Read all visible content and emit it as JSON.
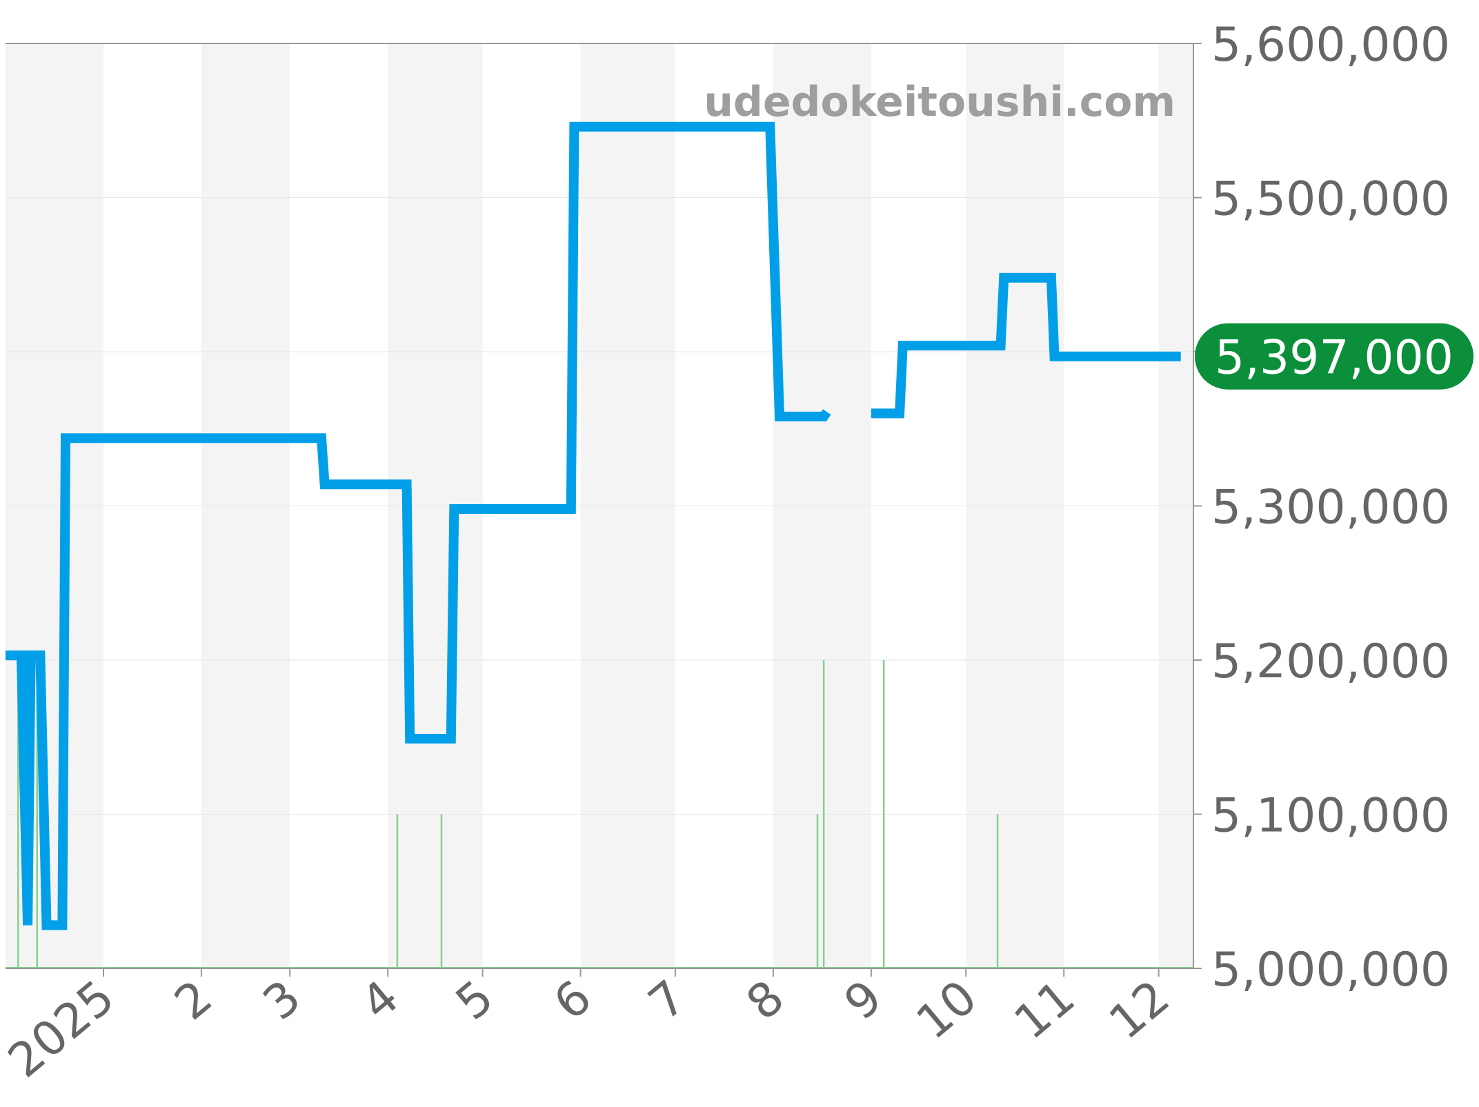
{
  "watermark": "udedokeitoushi.com",
  "colors": {
    "line": "#009fe8",
    "volume": "#86d08e",
    "band": "#f4f4f4",
    "grid": "#e6e6e6",
    "axis": "#999999",
    "tick_text": "#666666",
    "badge": "#0b8f3a",
    "watermark": "#9e9e9e"
  },
  "chart_data": {
    "type": "line",
    "title": "",
    "xlabel": "",
    "ylabel": "",
    "x_range": [
      "2024-12-01",
      "2025-12-12"
    ],
    "ylim": [
      5000000,
      5600000
    ],
    "y_ticks": [
      5000000,
      5100000,
      5200000,
      5300000,
      5400000,
      5500000,
      5600000
    ],
    "y_tick_labels": [
      "5,000,000",
      "5,100,000",
      "5,200,000",
      "5,300,000",
      "5,400,000",
      "5,500,000",
      "5,600,000"
    ],
    "x_ticks": [
      {
        "date": "2025-01-01",
        "label": "2025"
      },
      {
        "date": "2025-02-01",
        "label": "2"
      },
      {
        "date": "2025-03-01",
        "label": "3"
      },
      {
        "date": "2025-04-01",
        "label": "4"
      },
      {
        "date": "2025-05-01",
        "label": "5"
      },
      {
        "date": "2025-06-01",
        "label": "6"
      },
      {
        "date": "2025-07-01",
        "label": "7"
      },
      {
        "date": "2025-08-01",
        "label": "8"
      },
      {
        "date": "2025-09-01",
        "label": "9"
      },
      {
        "date": "2025-10-01",
        "label": "10"
      },
      {
        "date": "2025-11-01",
        "label": "11"
      },
      {
        "date": "2025-12-01",
        "label": "12"
      }
    ],
    "grid": true,
    "last_value_label": "5,397,000",
    "last_value": 5397000,
    "series": [
      {
        "segments": [
          [
            {
              "x": "2024-12-01",
              "y": 5203000
            },
            {
              "x": "2024-12-06",
              "y": 5203000
            },
            {
              "x": "2024-12-08",
              "y": 5028000
            },
            {
              "x": "2024-12-09",
              "y": 5203000
            },
            {
              "x": "2024-12-12",
              "y": 5203000
            },
            {
              "x": "2024-12-14",
              "y": 5028000
            },
            {
              "x": "2024-12-19",
              "y": 5028000
            },
            {
              "x": "2024-12-20",
              "y": 5344000
            },
            {
              "x": "2025-03-11",
              "y": 5344000
            },
            {
              "x": "2025-03-12",
              "y": 5314000
            },
            {
              "x": "2025-04-07",
              "y": 5314000
            },
            {
              "x": "2025-04-08",
              "y": 5149000
            },
            {
              "x": "2025-04-21",
              "y": 5149000
            },
            {
              "x": "2025-04-22",
              "y": 5298000
            },
            {
              "x": "2025-05-29",
              "y": 5298000
            },
            {
              "x": "2025-05-30",
              "y": 5546000
            },
            {
              "x": "2025-07-31",
              "y": 5546000
            },
            {
              "x": "2025-08-03",
              "y": 5358000
            },
            {
              "x": "2025-08-17",
              "y": 5358000
            },
            {
              "x": "2025-08-18",
              "y": 5361000
            }
          ],
          [
            {
              "x": "2025-09-01",
              "y": 5360000
            },
            {
              "x": "2025-09-10",
              "y": 5360000
            },
            {
              "x": "2025-09-11",
              "y": 5404000
            },
            {
              "x": "2025-10-12",
              "y": 5404000
            },
            {
              "x": "2025-10-13",
              "y": 5448000
            },
            {
              "x": "2025-10-28",
              "y": 5448000
            },
            {
              "x": "2025-10-29",
              "y": 5397000
            },
            {
              "x": "2025-12-08",
              "y": 5397000
            }
          ]
        ]
      }
    ],
    "volume": [
      {
        "x": "2024-12-05",
        "y": 5200000
      },
      {
        "x": "2024-12-11",
        "y": 5200000
      },
      {
        "x": "2025-04-04",
        "y": 5100000
      },
      {
        "x": "2025-04-18",
        "y": 5100000
      },
      {
        "x": "2025-08-15",
        "y": 5100000
      },
      {
        "x": "2025-08-17",
        "y": 5200000
      },
      {
        "x": "2025-09-05",
        "y": 5200000
      },
      {
        "x": "2025-10-11",
        "y": 5100000
      }
    ]
  }
}
